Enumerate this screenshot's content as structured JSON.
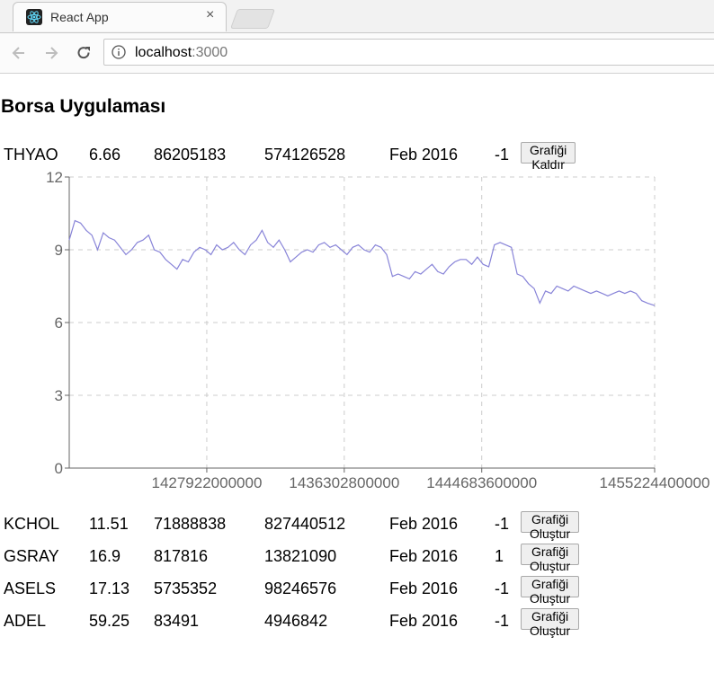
{
  "browser": {
    "tab_title": "React App",
    "close_symbol": "×",
    "url_host": "localhost",
    "url_port": ":3000"
  },
  "page": {
    "title": "Borsa Uygulaması"
  },
  "stocks": [
    {
      "symbol": "THYAO",
      "price": "6.66",
      "volume": "86205183",
      "value": "574126528",
      "date": "Feb 2016",
      "change": "-1",
      "button": "Grafiği Kaldır"
    },
    {
      "symbol": "KCHOL",
      "price": "11.51",
      "volume": "71888838",
      "value": "827440512",
      "date": "Feb 2016",
      "change": "-1",
      "button": "Grafiği Oluştur"
    },
    {
      "symbol": "GSRAY",
      "price": "16.9",
      "volume": "817816",
      "value": "13821090",
      "date": "Feb 2016",
      "change": "1",
      "button": "Grafiği Oluştur"
    },
    {
      "symbol": "ASELS",
      "price": "17.13",
      "volume": "5735352",
      "value": "98246576",
      "date": "Feb 2016",
      "change": "-1",
      "button": "Grafiği Oluştur"
    },
    {
      "symbol": "ADEL",
      "price": "59.25",
      "volume": "83491",
      "value": "4946842",
      "date": "Feb 2016",
      "change": "-1",
      "button": "Grafiği Oluştur"
    }
  ],
  "chart_data": {
    "type": "line",
    "title": "",
    "xlabel": "",
    "ylabel": "",
    "xlim": [
      1419537600000,
      1455224400000
    ],
    "ylim": [
      0,
      12
    ],
    "y_ticks": [
      "0",
      "3",
      "6",
      "9",
      "12"
    ],
    "x_ticks": [
      1427922000000,
      1436302800000,
      1444683600000,
      1455224400000
    ],
    "x_tick_labels": [
      "1427922000000",
      "1436302800000",
      "1444683600000",
      "1455224400000"
    ],
    "grid": true,
    "line_color": "#8884d8",
    "series": [
      {
        "x": [
          1419537600000,
          1419883200000,
          1420228800000,
          1420574400000,
          1420920000000,
          1421265600000,
          1421611200000,
          1421956800000,
          1422302400000,
          1422648000000,
          1422993600000,
          1423339200000,
          1423684800000,
          1424030400000,
          1424376000000,
          1424721600000,
          1425067200000,
          1425412800000,
          1425758400000,
          1426104000000,
          1426449600000,
          1426795200000,
          1427140800000,
          1427486400000,
          1427832000000,
          1428177600000,
          1428523200000,
          1428868800000,
          1429214400000,
          1429560000000,
          1429905600000,
          1430251200000,
          1430596800000,
          1430942400000,
          1431288000000,
          1431633600000,
          1431979200000,
          1432324800000,
          1432670400000,
          1433016000000,
          1433361600000,
          1433707200000,
          1434052800000,
          1434398400000,
          1434744000000,
          1435089600000,
          1435435200000,
          1435780800000,
          1436126400000,
          1436472000000,
          1436817600000,
          1437163200000,
          1437508800000,
          1437854400000,
          1438200000000,
          1438545600000,
          1438891200000,
          1439236800000,
          1439582400000,
          1439928000000,
          1440273600000,
          1440619200000,
          1440964800000,
          1441310400000,
          1441656000000,
          1442001600000,
          1442347200000,
          1442692800000,
          1443038400000,
          1443384000000,
          1443729600000,
          1444075200000,
          1444420800000,
          1444766400000,
          1445112000000,
          1445457600000,
          1445803200000,
          1446148800000,
          1446494400000,
          1446840000000,
          1447185600000,
          1447531200000,
          1447876800000,
          1448222400000,
          1448568000000,
          1448913600000,
          1449259200000,
          1449604800000,
          1449950400000,
          1450296000000,
          1450641600000,
          1450987200000,
          1451332800000,
          1451678400000,
          1452024000000,
          1452369600000,
          1452715200000,
          1453060800000,
          1453406400000,
          1453752000000,
          1454097600000,
          1454443200000,
          1454788800000,
          1455224400000
        ],
        "values": [
          9.4,
          10.2,
          10.1,
          9.8,
          9.6,
          9.0,
          9.7,
          9.5,
          9.4,
          9.1,
          8.8,
          9.0,
          9.3,
          9.4,
          9.6,
          9.0,
          8.9,
          8.6,
          8.4,
          8.2,
          8.6,
          8.5,
          8.9,
          9.1,
          9.0,
          8.8,
          9.2,
          9.0,
          9.1,
          9.3,
          9.0,
          8.8,
          9.2,
          9.4,
          9.8,
          9.3,
          9.1,
          9.4,
          9.0,
          8.5,
          8.7,
          8.9,
          9.0,
          8.9,
          9.2,
          9.3,
          9.1,
          9.2,
          9.0,
          8.8,
          9.1,
          9.2,
          9.0,
          8.9,
          9.2,
          9.1,
          8.8,
          7.9,
          8.0,
          7.9,
          7.8,
          8.1,
          8.0,
          8.2,
          8.4,
          8.1,
          8.0,
          8.3,
          8.5,
          8.6,
          8.6,
          8.4,
          8.7,
          8.4,
          8.3,
          9.2,
          9.3,
          9.2,
          9.1,
          8.0,
          7.9,
          7.6,
          7.4,
          6.8,
          7.3,
          7.2,
          7.5,
          7.4,
          7.3,
          7.5,
          7.4,
          7.3,
          7.2,
          7.3,
          7.2,
          7.1,
          7.2,
          7.3,
          7.2,
          7.3,
          7.2,
          6.9,
          6.8,
          6.7
        ]
      }
    ]
  }
}
